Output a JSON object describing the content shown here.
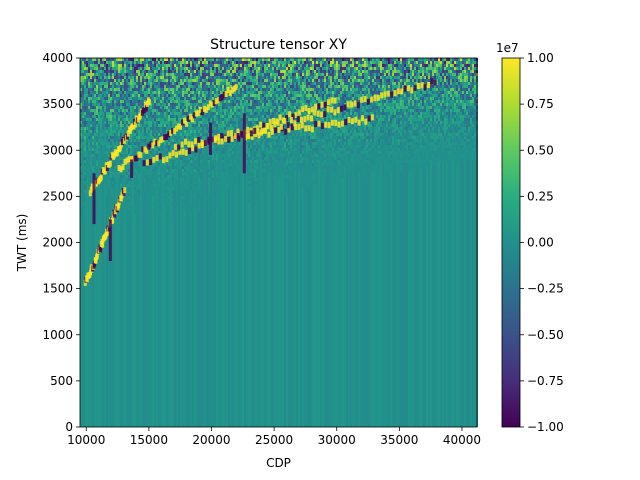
{
  "chart_data": {
    "type": "heatmap",
    "title": "Structure tensor XY",
    "xlabel": "CDP",
    "ylabel": "TWT (ms)",
    "xlim": [
      9500,
      41200
    ],
    "ylim": [
      0,
      4000
    ],
    "xticks": [
      10000,
      15000,
      20000,
      25000,
      30000,
      35000,
      40000
    ],
    "yticks": [
      0,
      500,
      1000,
      1500,
      2000,
      2500,
      3000,
      3500,
      4000
    ],
    "colormap": "viridis",
    "colorbar": {
      "range": [
        -1.0,
        1.0
      ],
      "ticks": [
        -1.0,
        -0.75,
        -0.5,
        -0.25,
        0.0,
        0.25,
        0.5,
        0.75,
        1.0
      ],
      "tick_labels": [
        "−1.00",
        "−0.75",
        "−0.50",
        "−0.25",
        "0.00",
        "0.25",
        "0.50",
        "0.75",
        "1.00"
      ],
      "offset_label": "1e7"
    },
    "grid": false
  }
}
